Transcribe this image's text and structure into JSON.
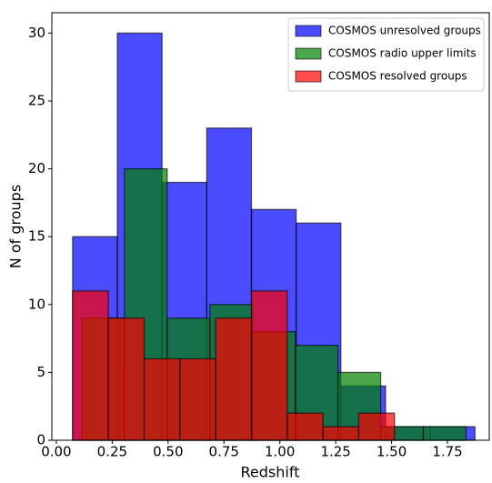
{
  "chart_data": {
    "type": "histogram",
    "x_label": "Redshift",
    "y_label": "N of groups",
    "series": [
      {
        "name": "COSMOS unresolved groups",
        "color": "#0000ff",
        "bins": [
          0.073,
          0.273,
          0.473,
          0.673,
          0.873,
          1.073,
          1.273,
          1.473,
          1.673,
          1.873
        ],
        "values": [
          15,
          30,
          19,
          23,
          17,
          16,
          4,
          1,
          1
        ]
      },
      {
        "name": "COSMOS radio upper limits",
        "color": "#008000",
        "bins": [
          0.114,
          0.305,
          0.496,
          0.687,
          0.878,
          1.069,
          1.26,
          1.451,
          1.642,
          1.833
        ],
        "values": [
          9,
          20,
          9,
          10,
          8,
          7,
          5,
          1,
          1
        ]
      },
      {
        "name": "COSMOS resolved groups",
        "color": "#ff0000",
        "bins": [
          0.073,
          0.233,
          0.393,
          0.553,
          0.713,
          0.873,
          1.033,
          1.193,
          1.353,
          1.513
        ],
        "values": [
          11,
          9,
          6,
          6,
          9,
          11,
          2,
          1,
          2
        ]
      }
    ],
    "xlim": [
      -0.02,
      1.937
    ],
    "ylim": [
      0,
      31.5
    ],
    "xticks": [
      {
        "value": 0,
        "label": "0.00"
      },
      {
        "value": 0.25,
        "label": "0.25"
      },
      {
        "value": 0.5,
        "label": "0.50"
      },
      {
        "value": 0.75,
        "label": "0.75"
      },
      {
        "value": 1,
        "label": "1.00"
      },
      {
        "value": 1.25,
        "label": "1.25"
      },
      {
        "value": 1.5,
        "label": "1.50"
      },
      {
        "value": 1.75,
        "label": "1.75"
      }
    ],
    "yticks": [
      0,
      5,
      10,
      15,
      20,
      25,
      30
    ],
    "legend": "upper right"
  }
}
